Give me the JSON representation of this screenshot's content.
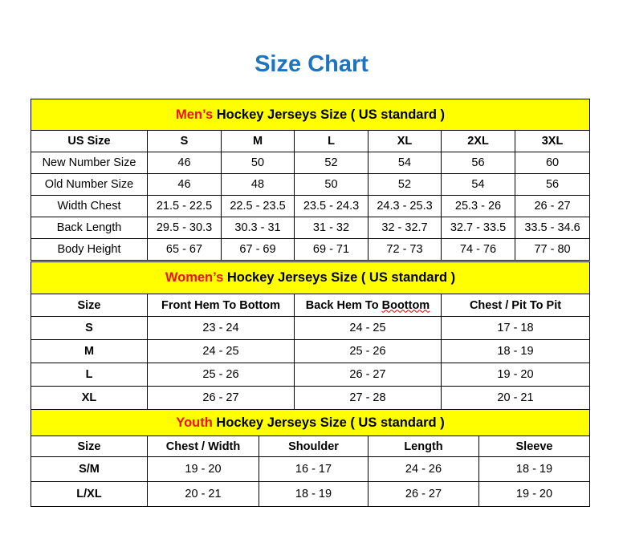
{
  "title": "Size Chart",
  "colors": {
    "title": "#1f74c0",
    "band": "#ffff00",
    "highlight": "#ee1111"
  },
  "men": {
    "label": "Men’s",
    "rest": "Hockey Jerseys Size ( US standard )",
    "headers": [
      "US Size",
      "S",
      "M",
      "L",
      "XL",
      "2XL",
      "3XL"
    ],
    "rows": [
      [
        "New Number Size",
        "46",
        "50",
        "52",
        "54",
        "56",
        "60"
      ],
      [
        "Old Number Size",
        "46",
        "48",
        "50",
        "52",
        "54",
        "56"
      ],
      [
        "Width Chest",
        "21.5 - 22.5",
        "22.5 - 23.5",
        "23.5 - 24.3",
        "24.3 - 25.3",
        "25.3 - 26",
        "26 - 27"
      ],
      [
        "Back Length",
        "29.5 - 30.3",
        "30.3 - 31",
        "31 - 32",
        "32 - 32.7",
        "32.7 - 33.5",
        "33.5 - 34.6"
      ],
      [
        "Body Height",
        "65 - 67",
        "67 - 69",
        "69 - 71",
        "72 - 73",
        "74 - 76",
        "77 - 80"
      ]
    ]
  },
  "women": {
    "label": "Women’s",
    "rest": "Hockey Jerseys Size ( US standard )",
    "headers": [
      "Size",
      "Front Hem To Bottom",
      "Back Hem To Boottom",
      "Chest / Pit To Pit"
    ],
    "rows": [
      [
        "S",
        "23 - 24",
        "24 - 25",
        "17 - 18"
      ],
      [
        "M",
        "24 - 25",
        "25 - 26",
        "18 - 19"
      ],
      [
        "L",
        "25 - 26",
        "26 - 27",
        "19 - 20"
      ],
      [
        "XL",
        "26 - 27",
        "27 - 28",
        "20 - 21"
      ]
    ]
  },
  "youth": {
    "label": "Youth",
    "rest": "Hockey Jerseys Size ( US standard )",
    "headers": [
      "Size",
      "Chest / Width",
      "Shoulder",
      "Length",
      "Sleeve"
    ],
    "rows": [
      [
        "S/M",
        "19 - 20",
        "16 - 17",
        "24 - 26",
        "18 - 19"
      ],
      [
        "L/XL",
        "20 - 21",
        "18 - 19",
        "26 - 27",
        "19 - 20"
      ]
    ]
  }
}
